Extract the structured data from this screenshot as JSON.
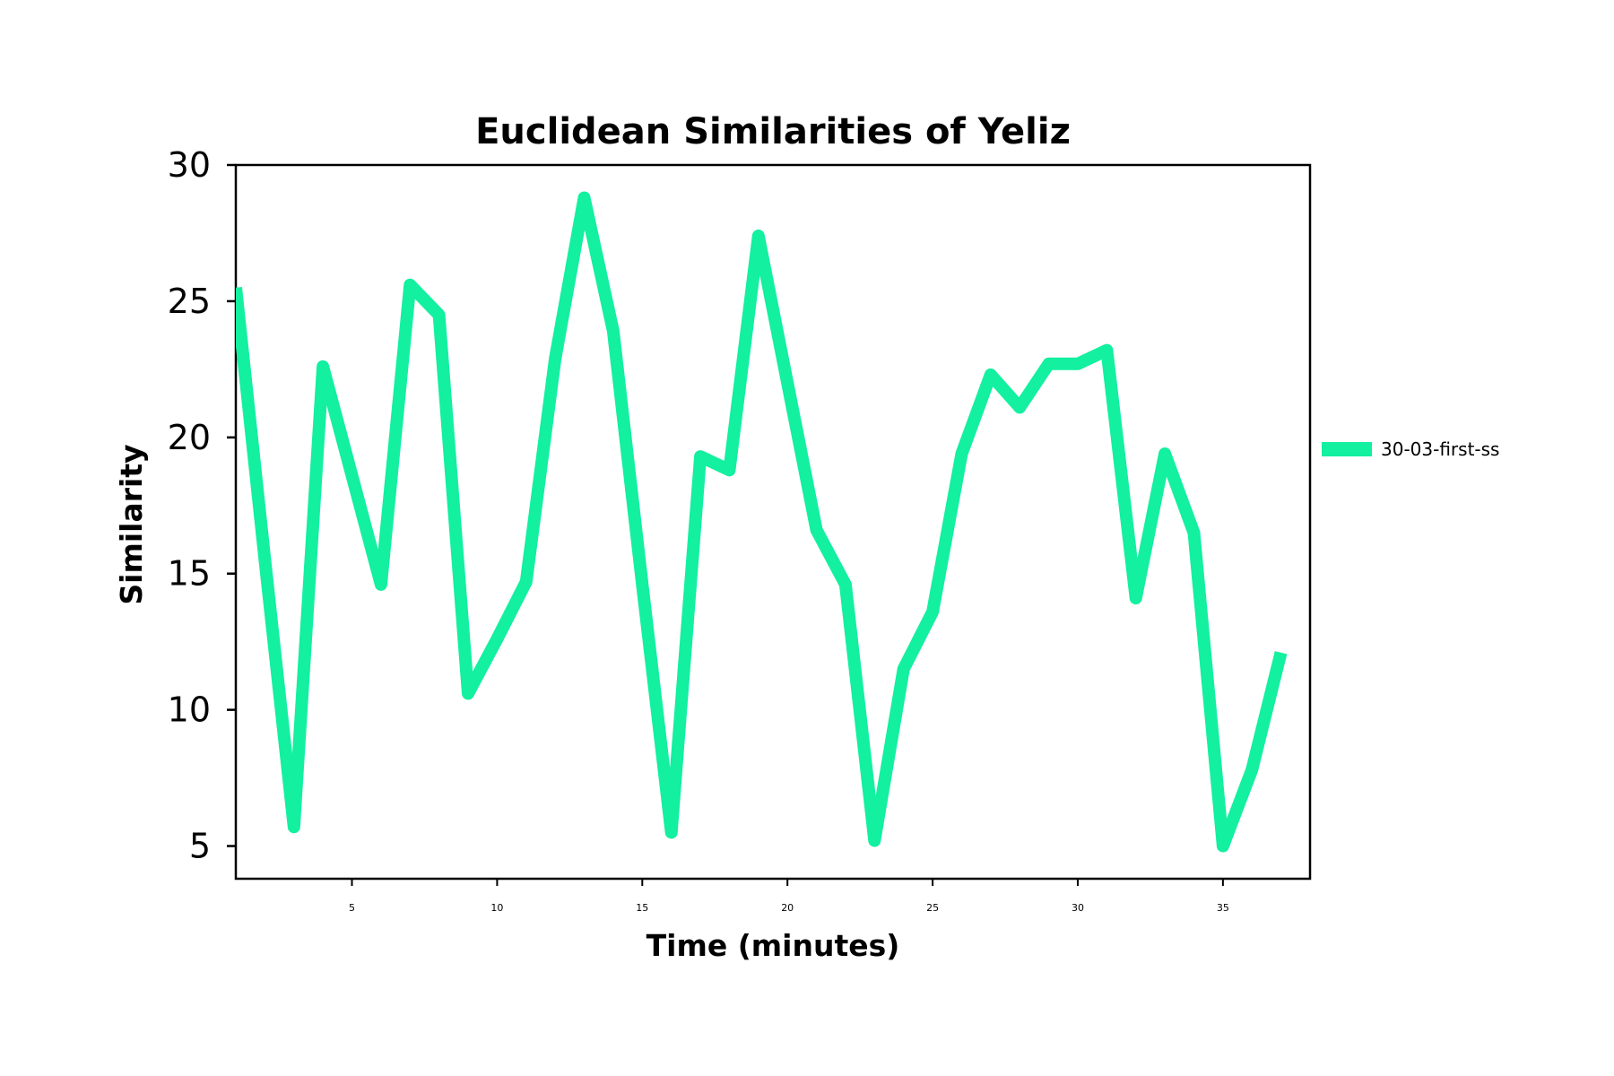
{
  "chart_data": {
    "type": "line",
    "title": "Euclidean Similarities of Yeliz",
    "xlabel": "Time (minutes)",
    "ylabel": "Similarity",
    "xlim": [
      1,
      38
    ],
    "ylim": [
      3.8,
      30
    ],
    "xticks": [
      5,
      10,
      15,
      20,
      25,
      30,
      35
    ],
    "yticks": [
      5,
      10,
      15,
      20,
      25,
      30
    ],
    "grid": false,
    "legend_position": "center-right-outside",
    "series": [
      {
        "name": "30-03-first-ss",
        "color": "#12f0a0",
        "x": [
          1,
          2,
          3,
          4,
          5,
          6,
          7,
          8,
          9,
          10,
          11,
          12,
          13,
          14,
          15,
          16,
          17,
          18,
          19,
          20,
          21,
          22,
          23,
          24,
          25,
          26,
          27,
          28,
          29,
          30,
          31,
          32,
          33,
          34,
          35,
          36,
          37
        ],
        "y": [
          25.5,
          15.5,
          5.7,
          22.6,
          18.6,
          14.6,
          25.6,
          24.5,
          10.6,
          12.6,
          14.7,
          22.9,
          28.8,
          23.9,
          14.6,
          5.5,
          19.3,
          18.8,
          27.4,
          22.0,
          16.6,
          14.6,
          5.2,
          11.5,
          13.6,
          19.4,
          22.3,
          21.1,
          22.7,
          22.7,
          23.2,
          14.1,
          19.4,
          16.5,
          5.0,
          7.8,
          12.1
        ]
      }
    ]
  }
}
